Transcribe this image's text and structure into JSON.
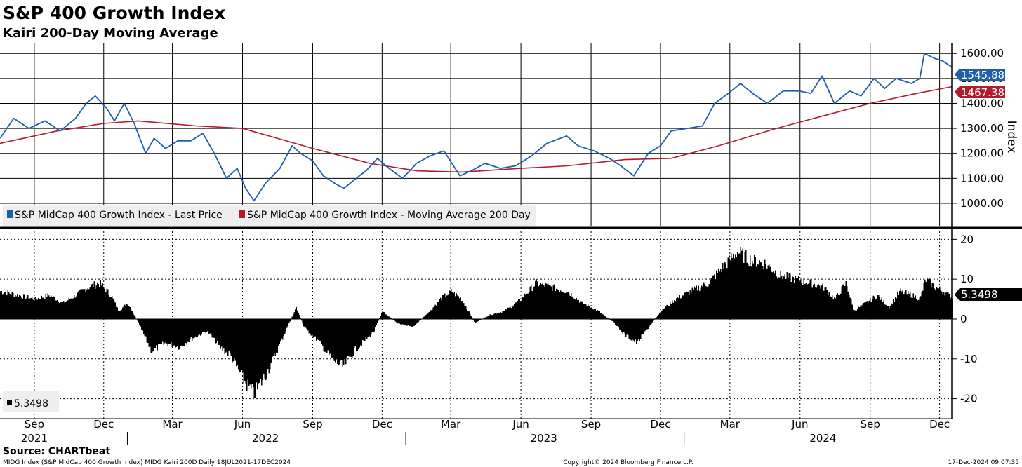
{
  "title": "S&P 400 Growth Index",
  "subtitle": "Kairi 200-Day Moving Average",
  "source": "Source: CHARTbeat",
  "footer_left": "MIDG Index (S&P MidCap 400 Growth Index) MIDG Kairi 200D  Daily 18JUL2021-17DEC2024",
  "footer_center": "Copyright© 2024 Bloomberg Finance L.P.",
  "footer_right": "17-Dec-2024 09:07:35",
  "colors": {
    "price": "#1f5fa8",
    "ma": "#b01c2e",
    "kairi": "#000000",
    "grid": "#000000"
  },
  "chart_data": [
    {
      "type": "line",
      "name": "price-panel",
      "ylabel": "Index",
      "ylim": [
        910,
        1640
      ],
      "yticks": [
        1000,
        1100,
        1200,
        1300,
        1400,
        1500,
        1600
      ],
      "ytick_labels": [
        "1000.00",
        "1100.00",
        "1200.00",
        "1300.00",
        "1400.00",
        "1500.00",
        "1600.00"
      ],
      "x_range": [
        "2021-07-18",
        "2024-12-17"
      ],
      "series": [
        {
          "name": "S&P MidCap 400 Growth Index - Last Price",
          "last_label": "1545.88",
          "dates": [
            "2021-07-18",
            "2021-08-05",
            "2021-08-25",
            "2021-09-15",
            "2021-10-05",
            "2021-10-25",
            "2021-11-08",
            "2021-11-20",
            "2021-12-05",
            "2021-12-15",
            "2021-12-28",
            "2022-01-10",
            "2022-01-25",
            "2022-02-05",
            "2022-02-20",
            "2022-03-08",
            "2022-03-25",
            "2022-04-10",
            "2022-04-25",
            "2022-05-11",
            "2022-05-25",
            "2022-06-05",
            "2022-06-16",
            "2022-07-01",
            "2022-07-20",
            "2022-08-05",
            "2022-08-16",
            "2022-09-01",
            "2022-09-15",
            "2022-09-30",
            "2022-10-12",
            "2022-10-28",
            "2022-11-10",
            "2022-11-25",
            "2022-12-10",
            "2022-12-28",
            "2023-01-15",
            "2023-02-02",
            "2023-02-20",
            "2023-03-13",
            "2023-03-28",
            "2023-04-15",
            "2023-05-05",
            "2023-05-25",
            "2023-06-15",
            "2023-07-05",
            "2023-07-31",
            "2023-08-15",
            "2023-09-05",
            "2023-09-25",
            "2023-10-10",
            "2023-10-27",
            "2023-11-15",
            "2023-12-01",
            "2023-12-15",
            "2024-01-05",
            "2024-01-25",
            "2024-02-10",
            "2024-02-28",
            "2024-03-15",
            "2024-03-31",
            "2024-04-19",
            "2024-05-10",
            "2024-05-31",
            "2024-06-15",
            "2024-06-30",
            "2024-07-16",
            "2024-08-05",
            "2024-08-20",
            "2024-09-06",
            "2024-09-20",
            "2024-10-05",
            "2024-10-25",
            "2024-11-05",
            "2024-11-11",
            "2024-11-25",
            "2024-12-05",
            "2024-12-17"
          ],
          "values": [
            1260,
            1340,
            1300,
            1330,
            1290,
            1340,
            1400,
            1430,
            1380,
            1330,
            1400,
            1320,
            1200,
            1260,
            1220,
            1250,
            1250,
            1280,
            1200,
            1100,
            1140,
            1060,
            1010,
            1080,
            1140,
            1230,
            1200,
            1170,
            1110,
            1080,
            1060,
            1100,
            1130,
            1180,
            1140,
            1100,
            1160,
            1190,
            1210,
            1110,
            1130,
            1160,
            1140,
            1150,
            1190,
            1240,
            1270,
            1230,
            1210,
            1180,
            1150,
            1110,
            1200,
            1230,
            1290,
            1300,
            1310,
            1400,
            1440,
            1480,
            1440,
            1400,
            1450,
            1450,
            1440,
            1510,
            1400,
            1450,
            1430,
            1500,
            1460,
            1500,
            1480,
            1500,
            1600,
            1580,
            1570,
            1546
          ]
        },
        {
          "name": "S&P MidCap 400 Growth Index - Moving Average 200 Day",
          "last_label": "1467.38",
          "dates": [
            "2021-07-18",
            "2021-10-01",
            "2021-12-01",
            "2022-01-15",
            "2022-04-01",
            "2022-06-01",
            "2022-09-01",
            "2022-11-15",
            "2023-01-15",
            "2023-03-15",
            "2023-06-01",
            "2023-08-01",
            "2023-10-15",
            "2023-12-15",
            "2024-02-15",
            "2024-05-01",
            "2024-07-01",
            "2024-09-01",
            "2024-11-01",
            "2024-12-17"
          ],
          "values": [
            1240,
            1290,
            1320,
            1330,
            1310,
            1300,
            1220,
            1160,
            1130,
            1125,
            1140,
            1150,
            1175,
            1180,
            1230,
            1300,
            1350,
            1400,
            1440,
            1467
          ]
        }
      ],
      "legend": [
        "S&P MidCap 400 Growth Index - Last Price",
        "S&P MidCap 400 Growth Index - Moving Average 200 Day"
      ]
    },
    {
      "type": "bar",
      "name": "kairi-panel",
      "ylim": [
        -25,
        22
      ],
      "yticks": [
        -20,
        -10,
        0,
        10,
        20
      ],
      "ytick_labels": [
        "-20",
        "-10",
        "0",
        "10",
        "20"
      ],
      "series": [
        {
          "name": "Kairi 200D",
          "last_label": "5.3498",
          "dates": [
            "2021-07-18",
            "2021-08-10",
            "2021-09-01",
            "2021-09-20",
            "2021-10-08",
            "2021-10-25",
            "2021-11-10",
            "2021-11-25",
            "2021-12-10",
            "2021-12-20",
            "2022-01-01",
            "2022-01-15",
            "2022-02-01",
            "2022-02-20",
            "2022-03-10",
            "2022-03-25",
            "2022-04-15",
            "2022-05-01",
            "2022-05-15",
            "2022-06-01",
            "2022-06-15",
            "2022-07-01",
            "2022-07-20",
            "2022-08-10",
            "2022-08-20",
            "2022-09-10",
            "2022-09-25",
            "2022-10-10",
            "2022-10-25",
            "2022-11-10",
            "2022-11-20",
            "2022-12-01",
            "2022-12-20",
            "2023-01-10",
            "2023-02-01",
            "2023-02-15",
            "2023-03-01",
            "2023-03-15",
            "2023-04-01",
            "2023-04-20",
            "2023-05-10",
            "2023-06-01",
            "2023-06-20",
            "2023-07-10",
            "2023-07-31",
            "2023-08-20",
            "2023-09-10",
            "2023-10-01",
            "2023-10-15",
            "2023-10-31",
            "2023-11-15",
            "2023-12-01",
            "2023-12-20",
            "2024-01-10",
            "2024-02-01",
            "2024-02-20",
            "2024-03-10",
            "2024-03-25",
            "2024-04-15",
            "2024-05-05",
            "2024-05-25",
            "2024-06-15",
            "2024-07-01",
            "2024-07-16",
            "2024-07-31",
            "2024-08-10",
            "2024-08-25",
            "2024-09-10",
            "2024-09-25",
            "2024-10-10",
            "2024-10-25",
            "2024-11-05",
            "2024-11-12",
            "2024-11-25",
            "2024-12-05",
            "2024-12-17"
          ],
          "values": [
            7,
            6,
            5,
            6,
            4,
            6,
            8,
            9,
            6,
            2,
            4,
            -1,
            -8,
            -6,
            -7,
            -5,
            -3,
            -7,
            -9,
            -15,
            -19,
            -14,
            -6,
            3,
            -2,
            -6,
            -10,
            -12,
            -8,
            -5,
            -3,
            2,
            -1,
            -2,
            2,
            5,
            7,
            5,
            -1,
            1,
            2,
            5,
            9,
            8,
            7,
            4,
            2,
            -1,
            -4,
            -6,
            -2,
            2,
            5,
            7,
            9,
            13,
            17,
            15,
            14,
            11,
            10,
            9,
            8,
            5,
            9,
            2,
            4,
            6,
            3,
            7,
            6,
            5,
            10,
            8,
            7,
            5.35
          ]
        }
      ],
      "legend": [
        "5.3498"
      ]
    }
  ],
  "x_axis": {
    "months": [
      {
        "label": "Sep",
        "date": "2021-09-01"
      },
      {
        "label": "Dec",
        "date": "2021-12-01"
      },
      {
        "label": "Mar",
        "date": "2022-03-01"
      },
      {
        "label": "Jun",
        "date": "2022-06-01"
      },
      {
        "label": "Sep",
        "date": "2022-09-01"
      },
      {
        "label": "Dec",
        "date": "2022-12-01"
      },
      {
        "label": "Mar",
        "date": "2023-03-01"
      },
      {
        "label": "Jun",
        "date": "2023-06-01"
      },
      {
        "label": "Sep",
        "date": "2023-09-01"
      },
      {
        "label": "Dec",
        "date": "2023-12-01"
      },
      {
        "label": "Mar",
        "date": "2024-03-01"
      },
      {
        "label": "Jun",
        "date": "2024-06-01"
      },
      {
        "label": "Sep",
        "date": "2024-09-01"
      },
      {
        "label": "Dec",
        "date": "2024-12-01"
      }
    ],
    "years": [
      {
        "label": "2021",
        "date": "2021-09-01"
      },
      {
        "label": "2022",
        "date": "2022-07-01"
      },
      {
        "label": "2023",
        "date": "2023-07-01"
      },
      {
        "label": "2024",
        "date": "2024-07-01"
      }
    ]
  }
}
